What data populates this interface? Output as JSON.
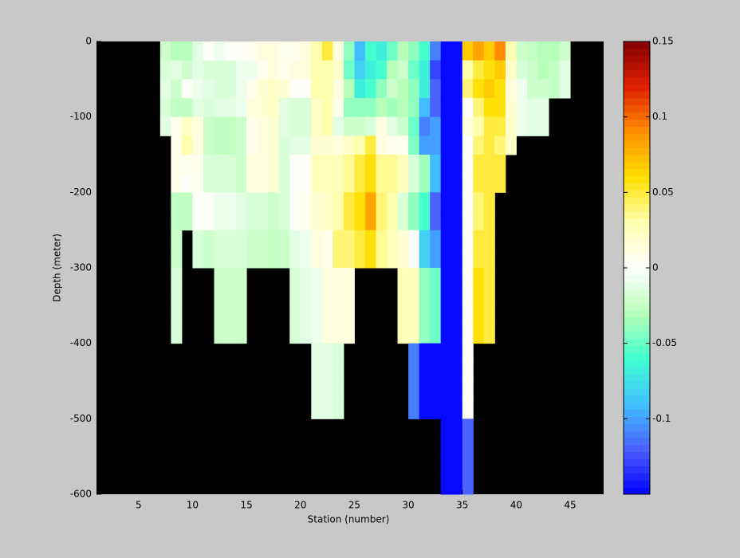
{
  "chart_data": {
    "type": "heatmap",
    "xlabel": "Station (number)",
    "ylabel": "Depth (meter)",
    "xlim": [
      1.1,
      48.1
    ],
    "ylim": [
      -600,
      0
    ],
    "xticks": [
      5,
      10,
      15,
      20,
      25,
      30,
      35,
      40,
      45
    ],
    "yticks": [
      0,
      -100,
      -200,
      -300,
      -400,
      -500,
      -600
    ],
    "clim": [
      -0.15,
      0.15
    ],
    "cticks": [
      0.15,
      0.1,
      0.05,
      0,
      -0.05,
      -0.1
    ],
    "background": "#000000",
    "colormap": [
      "#0000ff",
      "#4a60ff",
      "#40c0ff",
      "#40ffd0",
      "#b8ffb8",
      "#ffffff",
      "#ffffb0",
      "#ffe000",
      "#ff9000",
      "#e02000",
      "#800000"
    ],
    "x": [
      7,
      8,
      9,
      10,
      11,
      12,
      13,
      14,
      15,
      16,
      17,
      18,
      19,
      20,
      21,
      22,
      23,
      24,
      25,
      26,
      27,
      28,
      29,
      30,
      31,
      32,
      33,
      34,
      35,
      36,
      37,
      38,
      39,
      40,
      41,
      42,
      43,
      44
    ],
    "y": [
      0,
      -25,
      -50,
      -75,
      -100,
      -125,
      -150,
      -175,
      -200,
      -225,
      -250,
      -275,
      -300,
      -325,
      -350,
      -375,
      -400,
      -425,
      -450,
      -475,
      -500,
      -525,
      -550,
      -575
    ],
    "z": [
      [
        -0.02,
        -0.015,
        -0.01,
        -0.015,
        -0.01,
        null,
        null,
        null,
        null,
        null,
        null,
        null,
        null,
        null,
        null,
        null,
        null,
        null,
        null,
        null,
        null,
        null,
        null,
        null
      ],
      [
        -0.03,
        -0.01,
        -0.02,
        -0.025,
        0.005,
        0.005,
        0.005,
        0.005,
        -0.025,
        -0.025,
        -0.02,
        -0.02,
        -0.015,
        -0.015,
        -0.015,
        -0.015,
        null,
        null,
        null,
        null,
        null,
        null,
        null,
        null
      ],
      [
        -0.03,
        -0.02,
        0,
        -0.025,
        0.02,
        0.03,
        0.005,
        0,
        -0.025,
        -0.025,
        null,
        null,
        null,
        null,
        null,
        null,
        null,
        null,
        null,
        null,
        null,
        null,
        null,
        null
      ],
      [
        -0.01,
        -0.01,
        -0.005,
        -0.01,
        0.01,
        0.01,
        0.005,
        0.005,
        0,
        0,
        -0.015,
        -0.015,
        null,
        null,
        null,
        null,
        null,
        null,
        null,
        null,
        null,
        null,
        null,
        null
      ],
      [
        0,
        -0.015,
        -0.01,
        -0.015,
        -0.02,
        -0.02,
        -0.015,
        -0.015,
        0,
        0,
        -0.02,
        -0.02,
        null,
        null,
        null,
        null,
        null,
        null,
        null,
        null,
        null,
        null,
        null,
        null
      ],
      [
        -0.005,
        -0.015,
        -0.015,
        -0.01,
        -0.025,
        -0.025,
        -0.015,
        -0.015,
        -0.005,
        -0.005,
        -0.015,
        -0.015,
        -0.02,
        -0.02,
        -0.02,
        -0.02,
        null,
        null,
        null,
        null,
        null,
        null,
        null,
        null
      ],
      [
        0,
        -0.015,
        -0.015,
        -0.01,
        -0.025,
        -0.025,
        -0.015,
        -0.015,
        -0.005,
        -0.005,
        -0.015,
        -0.015,
        -0.02,
        -0.02,
        -0.02,
        -0.02,
        null,
        null,
        null,
        null,
        null,
        null,
        null,
        null
      ],
      [
        0,
        -0.005,
        -0.005,
        -0.005,
        -0.02,
        -0.02,
        -0.02,
        -0.02,
        -0.01,
        -0.01,
        -0.015,
        -0.015,
        -0.02,
        -0.02,
        -0.02,
        -0.02,
        null,
        null,
        null,
        null,
        null,
        null,
        null,
        null
      ],
      [
        0.005,
        -0.005,
        0.005,
        0.01,
        0.005,
        0.005,
        0.01,
        0.01,
        -0.015,
        -0.015,
        -0.02,
        -0.02,
        null,
        null,
        null,
        null,
        null,
        null,
        null,
        null,
        null,
        null,
        null,
        null
      ],
      [
        0.01,
        0.005,
        0.015,
        0.015,
        0.01,
        0.01,
        0.01,
        0.01,
        -0.015,
        -0.015,
        -0.02,
        -0.02,
        null,
        null,
        null,
        null,
        null,
        null,
        null,
        null,
        null,
        null,
        null,
        null
      ],
      [
        0.01,
        0.01,
        0.02,
        0.02,
        0.015,
        0.015,
        0.015,
        0.015,
        -0.02,
        -0.02,
        -0.025,
        -0.025,
        null,
        null,
        null,
        null,
        null,
        null,
        null,
        null,
        null,
        null,
        null,
        null
      ],
      [
        0.005,
        0.005,
        0.015,
        -0.01,
        -0.01,
        -0.015,
        -0.015,
        -0.015,
        -0.015,
        -0.015,
        -0.02,
        -0.02,
        null,
        null,
        null,
        null,
        null,
        null,
        null,
        null,
        null,
        null,
        null,
        null
      ],
      [
        0.005,
        0.01,
        0,
        -0.015,
        -0.015,
        -0.01,
        0,
        0,
        0,
        0,
        -0.01,
        -0.01,
        -0.015,
        -0.015,
        -0.015,
        -0.015,
        null,
        null,
        null,
        null,
        null,
        null,
        null,
        null
      ],
      [
        0.01,
        0.01,
        0,
        -0.015,
        -0.015,
        -0.01,
        0,
        0,
        0.005,
        0.005,
        -0.005,
        -0.005,
        -0.01,
        -0.01,
        -0.01,
        -0.01,
        null,
        null,
        null,
        null,
        null,
        null,
        null,
        null
      ],
      [
        0.03,
        0.03,
        0.03,
        0.02,
        0.02,
        0.015,
        0.025,
        0.025,
        0.015,
        0.015,
        0.01,
        0.01,
        -0.005,
        -0.005,
        -0.005,
        -0.005,
        -0.01,
        -0.01,
        -0.01,
        -0.01,
        null,
        null,
        null,
        null
      ],
      [
        0.05,
        0.03,
        0.03,
        0.03,
        0.03,
        0.015,
        0.025,
        0.025,
        0.02,
        0.02,
        0.005,
        0.005,
        0.01,
        0.01,
        0.01,
        0.01,
        -0.01,
        -0.01,
        -0.01,
        -0.01,
        null,
        null,
        null,
        null
      ],
      [
        0.01,
        0.02,
        0.01,
        0.005,
        -0.01,
        0.01,
        0.025,
        0.025,
        0.03,
        0.03,
        0.04,
        0.04,
        0.01,
        0.01,
        0.01,
        0.01,
        -0.015,
        -0.015,
        -0.015,
        -0.015,
        null,
        null,
        null,
        null
      ],
      [
        -0.04,
        -0.05,
        -0.03,
        -0.04,
        -0.02,
        0.02,
        0.035,
        0.035,
        0.05,
        0.05,
        0.04,
        0.04,
        0.01,
        0.01,
        0.01,
        0.01,
        null,
        null,
        null,
        null,
        null,
        null,
        null,
        null
      ],
      [
        -0.09,
        -0.08,
        -0.07,
        -0.04,
        -0.02,
        0.03,
        0.05,
        0.05,
        0.06,
        0.06,
        0.05,
        0.05,
        null,
        null,
        null,
        null,
        null,
        null,
        null,
        null,
        null,
        null,
        null,
        null
      ],
      [
        -0.06,
        -0.07,
        -0.06,
        -0.04,
        -0.015,
        0.05,
        0.06,
        0.06,
        0.08,
        0.08,
        0.06,
        0.06,
        null,
        null,
        null,
        null,
        null,
        null,
        null,
        null,
        null,
        null,
        null,
        null
      ],
      [
        -0.07,
        -0.06,
        -0.04,
        -0.03,
        0.01,
        0.01,
        0.035,
        0.035,
        0.04,
        0.04,
        0.035,
        0.035,
        null,
        null,
        null,
        null,
        null,
        null,
        null,
        null,
        null,
        null,
        null,
        null
      ],
      [
        -0.05,
        -0.03,
        -0.02,
        -0.035,
        -0.01,
        0.005,
        0.035,
        0.035,
        0.03,
        0.03,
        0.025,
        0.025,
        null,
        null,
        null,
        null,
        null,
        null,
        null,
        null,
        null,
        null,
        null,
        null
      ],
      [
        -0.03,
        -0.02,
        -0.03,
        -0.03,
        -0.02,
        0.005,
        0.025,
        0.025,
        -0.015,
        -0.015,
        0.015,
        0.015,
        0.025,
        0.025,
        0.025,
        0.025,
        null,
        null,
        null,
        null,
        null,
        null,
        null,
        null
      ],
      [
        -0.04,
        -0.05,
        -0.04,
        -0.04,
        -0.05,
        -0.045,
        -0.015,
        -0.015,
        -0.04,
        -0.04,
        0,
        0,
        0.025,
        0.025,
        0.025,
        0.025,
        -0.11,
        -0.11,
        -0.11,
        -0.11,
        null,
        null,
        null,
        null
      ],
      [
        -0.06,
        -0.07,
        -0.07,
        -0.09,
        -0.11,
        -0.1,
        -0.035,
        -0.035,
        -0.06,
        -0.06,
        -0.08,
        -0.08,
        -0.04,
        -0.04,
        -0.04,
        -0.04,
        -0.15,
        -0.15,
        -0.15,
        -0.15,
        null,
        null,
        null,
        null
      ],
      [
        -0.11,
        -0.13,
        -0.12,
        -0.12,
        -0.1,
        -0.1,
        -0.09,
        -0.09,
        -0.12,
        -0.12,
        -0.1,
        -0.1,
        -0.05,
        -0.05,
        -0.05,
        -0.05,
        -0.15,
        -0.15,
        -0.15,
        -0.15,
        null,
        null,
        null,
        null
      ],
      [
        -0.15,
        -0.15,
        -0.15,
        -0.15,
        -0.15,
        -0.15,
        -0.15,
        -0.15,
        -0.15,
        -0.15,
        -0.15,
        -0.15,
        -0.15,
        -0.15,
        -0.15,
        -0.15,
        -0.15,
        -0.15,
        -0.15,
        -0.15,
        -0.15,
        -0.15,
        -0.15,
        -0.15
      ],
      [
        -0.15,
        -0.15,
        -0.15,
        -0.15,
        -0.15,
        -0.15,
        -0.15,
        -0.15,
        -0.15,
        -0.15,
        -0.15,
        -0.15,
        -0.15,
        -0.15,
        -0.15,
        -0.15,
        -0.15,
        -0.15,
        -0.15,
        -0.15,
        -0.15,
        -0.15,
        -0.15,
        -0.15
      ],
      [
        0.07,
        0.03,
        0.04,
        0,
        0.01,
        0,
        0,
        0,
        0,
        0,
        0,
        0,
        0,
        0,
        0,
        0,
        0,
        0,
        0,
        0,
        -0.12,
        -0.12,
        -0.12,
        -0.12
      ],
      [
        0.08,
        0.05,
        0.06,
        0.04,
        0.03,
        0.04,
        0.05,
        0.05,
        0.04,
        0.04,
        0.05,
        0.05,
        0.06,
        0.06,
        0.06,
        0.06,
        null,
        null,
        null,
        null,
        null,
        null,
        null,
        null
      ],
      [
        0.07,
        0.06,
        0.07,
        0.06,
        0.05,
        0.05,
        0.05,
        0.05,
        0.05,
        0.05,
        0.05,
        0.05,
        0.05,
        0.05,
        0.05,
        0.05,
        null,
        null,
        null,
        null,
        null,
        null,
        null,
        null
      ],
      [
        0.09,
        0.07,
        0.06,
        0.06,
        0.05,
        0.04,
        0.05,
        0.05,
        null,
        null,
        null,
        null,
        null,
        null,
        null,
        null,
        null,
        null,
        null,
        null,
        null,
        null,
        null,
        null
      ],
      [
        0.03,
        0.02,
        0.01,
        0.015,
        0.02,
        0.02,
        null,
        null,
        null,
        null,
        null,
        null,
        null,
        null,
        null,
        null,
        null,
        null,
        null,
        null,
        null,
        null,
        null,
        null
      ],
      [
        -0.02,
        -0.015,
        -0.005,
        -0.005,
        -0.005,
        null,
        null,
        null,
        null,
        null,
        null,
        null,
        null,
        null,
        null,
        null,
        null,
        null,
        null,
        null,
        null,
        null,
        null,
        null
      ],
      [
        -0.025,
        -0.02,
        -0.02,
        -0.01,
        -0.01,
        null,
        null,
        null,
        null,
        null,
        null,
        null,
        null,
        null,
        null,
        null,
        null,
        null,
        null,
        null,
        null,
        null,
        null,
        null
      ],
      [
        -0.03,
        -0.03,
        -0.02,
        -0.01,
        -0.01,
        null,
        null,
        null,
        null,
        null,
        null,
        null,
        null,
        null,
        null,
        null,
        null,
        null,
        null,
        null,
        null,
        null,
        null,
        null
      ],
      [
        -0.03,
        -0.025,
        -0.025,
        null,
        null,
        null,
        null,
        null,
        null,
        null,
        null,
        null,
        null,
        null,
        null,
        null,
        null,
        null,
        null,
        null,
        null,
        null,
        null,
        null
      ],
      [
        -0.02,
        -0.01,
        -0.01,
        null,
        null,
        null,
        null,
        null,
        null,
        null,
        null,
        null,
        null,
        null,
        null,
        null,
        null,
        null,
        null,
        null,
        null,
        null,
        null,
        null
      ]
    ]
  }
}
